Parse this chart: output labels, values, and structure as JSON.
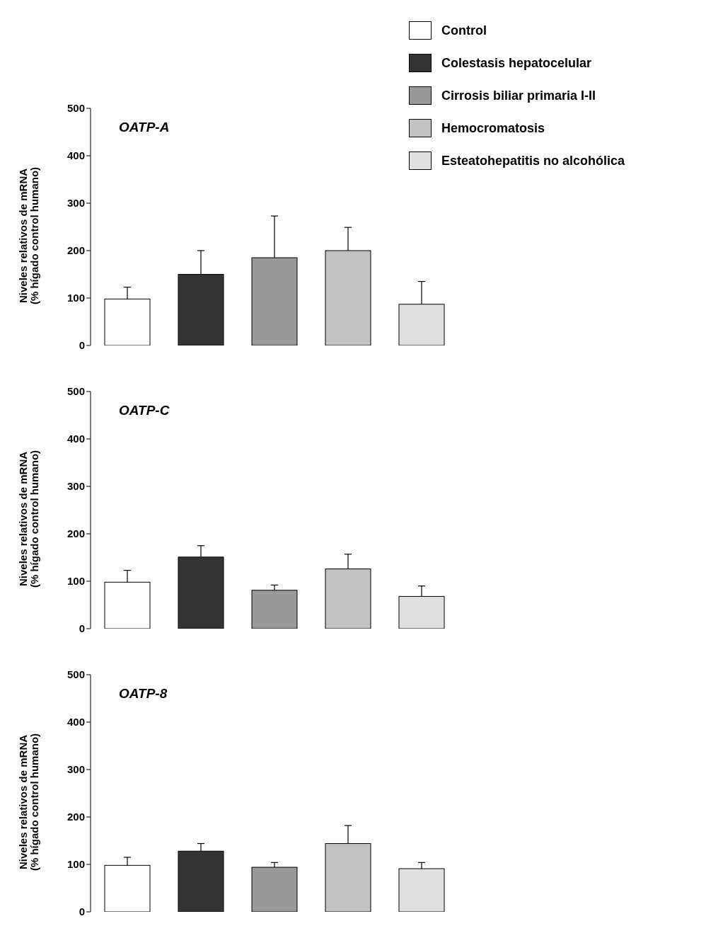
{
  "chart_data": [
    {
      "type": "bar",
      "title": "OATP-A",
      "ylabel": "Niveles relativos de mRNA\n(% hígado control humano)",
      "categories": [
        null,
        null,
        null,
        null,
        null
      ],
      "stacked": true,
      "series": [
        {
          "name": "Control",
          "color": "#ffffff",
          "values": [
            98,
            null,
            null,
            null,
            null
          ],
          "errors": [
            [
              98,
              123
            ],
            null,
            null,
            null,
            null
          ]
        },
        {
          "name": "Colestasis hepatocelular",
          "color": "#333333",
          "values": [
            null,
            150,
            null,
            null,
            null
          ],
          "errors": [
            null,
            [
              150,
              200
            ],
            null,
            null,
            null
          ]
        },
        {
          "name": "Cirrosis biliar primaria I-II",
          "color": "#999999",
          "values": [
            null,
            null,
            185,
            null,
            null
          ],
          "errors": [
            null,
            null,
            [
              185,
              273
            ],
            null,
            null
          ]
        },
        {
          "name": "Hemocromatosis",
          "color": "#c2c2c2",
          "values": [
            null,
            null,
            null,
            200,
            null
          ],
          "errors": [
            null,
            null,
            null,
            [
              200,
              249
            ],
            null
          ]
        },
        {
          "name": "Esteatohepatitis no alcohólica",
          "color": "#e0e0e0",
          "values": [
            null,
            null,
            null,
            null,
            87
          ],
          "errors": [
            null,
            null,
            null,
            null,
            [
              87,
              135
            ]
          ]
        }
      ],
      "ylim": [
        0,
        500
      ],
      "yticks": [
        0,
        100,
        200,
        300,
        400,
        500
      ],
      "grid": false,
      "legend": "top right",
      "tick_labels": "y"
    },
    {
      "type": "bar",
      "title": "OATP-C",
      "ylabel": "Niveles relativos de mRNA\n(% hígado control humano)",
      "categories": [
        null,
        null,
        null,
        null,
        null
      ],
      "stacked": true,
      "series": [
        {
          "color": "#ffffff",
          "values": [
            98,
            null,
            null,
            null,
            null
          ],
          "errors": [
            [
              98,
              123
            ],
            null,
            null,
            null,
            null
          ]
        },
        {
          "color": "#333333",
          "values": [
            null,
            151,
            null,
            null,
            null
          ],
          "errors": [
            null,
            [
              151,
              175
            ],
            null,
            null,
            null
          ]
        },
        {
          "color": "#999999",
          "values": [
            null,
            null,
            81,
            null,
            null
          ],
          "errors": [
            null,
            null,
            [
              81,
              92
            ],
            null,
            null
          ]
        },
        {
          "color": "#c2c2c2",
          "values": [
            null,
            null,
            null,
            126,
            null
          ],
          "errors": [
            null,
            null,
            null,
            [
              126,
              157
            ],
            null
          ]
        },
        {
          "color": "#e0e0e0",
          "values": [
            null,
            null,
            null,
            null,
            68
          ],
          "errors": [
            null,
            null,
            null,
            null,
            [
              68,
              90
            ]
          ]
        }
      ],
      "ylim": [
        0,
        500
      ],
      "yticks": [
        0,
        100,
        200,
        300,
        400,
        500
      ],
      "grid": false,
      "legend": false,
      "tick_labels": "y"
    },
    {
      "type": "bar",
      "title": "OATP-8",
      "ylabel": "Niveles relativos de mRNA\n(% hígado control humano)",
      "categories": [
        null,
        null,
        null,
        null,
        null
      ],
      "stacked": true,
      "series": [
        {
          "color": "#ffffff",
          "values": [
            98,
            null,
            null,
            null,
            null
          ],
          "errors": [
            [
              98,
              115
            ],
            null,
            null,
            null,
            null
          ]
        },
        {
          "color": "#333333",
          "values": [
            null,
            128,
            null,
            null,
            null
          ],
          "errors": [
            null,
            [
              128,
              144
            ],
            null,
            null,
            null
          ]
        },
        {
          "color": "#999999",
          "values": [
            null,
            null,
            94,
            null,
            null
          ],
          "errors": [
            null,
            null,
            [
              94,
              104
            ],
            null,
            null
          ]
        },
        {
          "color": "#c2c2c2",
          "values": [
            null,
            null,
            null,
            144,
            null
          ],
          "errors": [
            null,
            null,
            null,
            [
              144,
              182
            ],
            null
          ]
        },
        {
          "color": "#e0e0e0",
          "values": [
            null,
            null,
            null,
            null,
            91
          ],
          "errors": [
            null,
            null,
            null,
            null,
            [
              91,
              104
            ]
          ]
        }
      ],
      "ylim": [
        0,
        500
      ],
      "yticks": [
        0,
        100,
        200,
        300,
        400,
        500
      ],
      "grid": false,
      "legend": false,
      "tick_labels": "y"
    }
  ]
}
